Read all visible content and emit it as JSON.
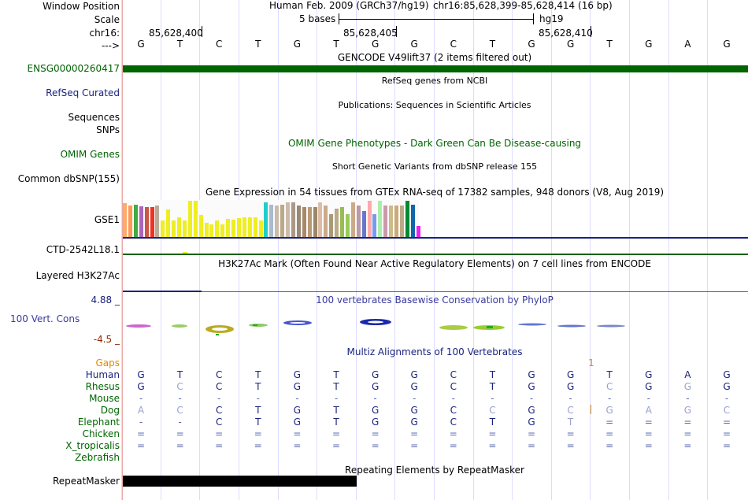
{
  "header": {
    "window_position_label": "Window Position",
    "scale_label": "Scale",
    "chrom_label": "chr16:",
    "arrow_label": "--->",
    "assembly": "Human Feb. 2009 (GRCh37/hg19)",
    "position": "chr16:85,628,399-85,628,414 (16 bp)",
    "scale_bar_text": "5 bases",
    "scale_assembly": "hg19",
    "coordinates": [
      "85,628,400",
      "85,628,405",
      "85,628,410"
    ],
    "bases": [
      "G",
      "T",
      "C",
      "T",
      "G",
      "T",
      "G",
      "G",
      "C",
      "T",
      "G",
      "G",
      "T",
      "G",
      "A",
      "G"
    ]
  },
  "tracks": {
    "gencode": {
      "title": "GENCODE V49lift37 (2 items filtered out)",
      "item_label": "ENSG00000260417"
    },
    "refseq": {
      "title": "RefSeq genes from NCBI",
      "label": "RefSeq Curated"
    },
    "publications": {
      "title": "Publications: Sequences in Scientific Articles",
      "label_a": "Sequences",
      "label_b": "SNPs"
    },
    "omim": {
      "title": "OMIM Gene Phenotypes - Dark Green Can Be Disease-causing",
      "label": "OMIM Genes"
    },
    "dbsnp": {
      "title": "Short Genetic Variants from dbSNP release 155",
      "label": "Common dbSNP(155)"
    },
    "gtex": {
      "title": "Gene Expression in 54 tissues from GTEx RNA-seq of 17382 samples, 948 donors (V8, Aug 2019)",
      "gene_label": "GSE1",
      "gene2_label": "CTD-2542L18.1",
      "bars": [
        {
          "v": 0.93,
          "c": "#ffaa66"
        },
        {
          "v": 0.86,
          "c": "#ff9955"
        },
        {
          "v": 0.9,
          "c": "#44aa44"
        },
        {
          "v": 0.84,
          "c": "#aa66bb"
        },
        {
          "v": 0.82,
          "c": "#cc5544"
        },
        {
          "v": 0.82,
          "c": "#ee3322"
        },
        {
          "v": 0.88,
          "c": "#bbaa99"
        },
        {
          "v": 0.46,
          "c": "#eeee22"
        },
        {
          "v": 0.75,
          "c": "#eeee22"
        },
        {
          "v": 0.46,
          "c": "#eeee22"
        },
        {
          "v": 0.55,
          "c": "#eeee22"
        },
        {
          "v": 0.46,
          "c": "#eeee22"
        },
        {
          "v": 1.0,
          "c": "#eeee22"
        },
        {
          "v": 1.0,
          "c": "#eeee22"
        },
        {
          "v": 0.6,
          "c": "#eeee22"
        },
        {
          "v": 0.4,
          "c": "#eeee22"
        },
        {
          "v": 0.35,
          "c": "#eeee22"
        },
        {
          "v": 0.45,
          "c": "#eeee22"
        },
        {
          "v": 0.35,
          "c": "#eeee22"
        },
        {
          "v": 0.5,
          "c": "#eeee22"
        },
        {
          "v": 0.47,
          "c": "#eeee22"
        },
        {
          "v": 0.52,
          "c": "#eeee22"
        },
        {
          "v": 0.55,
          "c": "#eeee22"
        },
        {
          "v": 0.55,
          "c": "#eeee22"
        },
        {
          "v": 0.55,
          "c": "#eeee22"
        },
        {
          "v": 0.46,
          "c": "#eeee22"
        },
        {
          "v": 0.95,
          "c": "#22cccc"
        },
        {
          "v": 0.9,
          "c": "#aabbcc"
        },
        {
          "v": 0.86,
          "c": "#ccbbaa"
        },
        {
          "v": 0.9,
          "c": "#bbaa88"
        },
        {
          "v": 0.95,
          "c": "#ccbbaa"
        },
        {
          "v": 0.95,
          "c": "#aa9988"
        },
        {
          "v": 0.86,
          "c": "#998877"
        },
        {
          "v": 0.82,
          "c": "#aa8866"
        },
        {
          "v": 0.82,
          "c": "#bb9977"
        },
        {
          "v": 0.82,
          "c": "#998866"
        },
        {
          "v": 0.95,
          "c": "#ddbbaa"
        },
        {
          "v": 0.86,
          "c": "#ccaa88"
        },
        {
          "v": 0.64,
          "c": "#aa9977"
        },
        {
          "v": 0.78,
          "c": "#bbaa88"
        },
        {
          "v": 0.82,
          "c": "#99bb55"
        },
        {
          "v": 0.64,
          "c": "#99cc55"
        },
        {
          "v": 0.95,
          "c": "#ccaa88"
        },
        {
          "v": 0.86,
          "c": "#bb99aa"
        },
        {
          "v": 0.72,
          "c": "#6677cc"
        },
        {
          "v": 1.0,
          "c": "#ffaaaa"
        },
        {
          "v": 0.64,
          "c": "#7799ee"
        },
        {
          "v": 1.0,
          "c": "#aaeeaa"
        },
        {
          "v": 0.88,
          "c": "#cc99aa"
        },
        {
          "v": 0.86,
          "c": "#ccbb88"
        },
        {
          "v": 0.86,
          "c": "#ccaa77"
        },
        {
          "v": 0.88,
          "c": "#bbaa88"
        },
        {
          "v": 1.0,
          "c": "#008833"
        },
        {
          "v": 0.9,
          "c": "#1166aa"
        },
        {
          "v": 0.3,
          "c": "#ee22ee"
        }
      ]
    },
    "h3k27ac": {
      "title": "H3K27Ac Mark (Often Found Near Active Regulatory Elements) on 7 cell lines from ENCODE",
      "label": "Layered H3K27Ac"
    },
    "cons": {
      "title": "100 vertebrates Basewise Conservation by PhyloP",
      "label": "100 Vert. Cons",
      "max": "4.88 _",
      "min": "-4.5 _"
    },
    "multiz": {
      "title": "Multiz Alignments of 100 Vertebrates",
      "gaps_label": "Gaps",
      "gap_count": "1",
      "species": [
        {
          "name": "Human",
          "seq": [
            "G",
            "T",
            "C",
            "T",
            "G",
            "T",
            "G",
            "G",
            "C",
            "T",
            "G",
            "G",
            "T",
            "G",
            "A",
            "G"
          ]
        },
        {
          "name": "Rhesus",
          "seq": [
            "G",
            "C",
            "C",
            "T",
            "G",
            "T",
            "G",
            "G",
            "C",
            "T",
            "G",
            "G",
            "C",
            "G",
            "G",
            "G"
          ]
        },
        {
          "name": "Mouse",
          "seq": [
            "-",
            "-",
            "-",
            "-",
            "-",
            "-",
            "-",
            "-",
            "-",
            "-",
            "-",
            "-",
            "-",
            "-",
            "-",
            "-"
          ]
        },
        {
          "name": "Dog",
          "seq": [
            "A",
            "C",
            "C",
            "T",
            "G",
            "T",
            "G",
            "G",
            "C",
            "C",
            "G",
            "C",
            "G",
            "A",
            "G",
            "C"
          ]
        },
        {
          "name": "Elephant",
          "seq": [
            "-",
            "-",
            "C",
            "T",
            "G",
            "T",
            "G",
            "G",
            "C",
            "T",
            "G",
            "T",
            "=",
            "=",
            "=",
            "="
          ]
        },
        {
          "name": "Chicken",
          "seq": [
            "=",
            "=",
            "=",
            "=",
            "=",
            "=",
            "=",
            "=",
            "=",
            "=",
            "=",
            "=",
            "=",
            "=",
            "=",
            "="
          ]
        },
        {
          "name": "X_tropicalis",
          "seq": [
            "=",
            "=",
            "=",
            "=",
            "=",
            "=",
            "=",
            "=",
            "=",
            "=",
            "=",
            "=",
            "=",
            "=",
            "=",
            "="
          ]
        },
        {
          "name": "Zebrafish",
          "seq": [
            "",
            "",
            "",
            "",
            "",
            "",
            "",
            "",
            "",
            "",
            "",
            "",
            "",
            "",
            "",
            ""
          ]
        }
      ]
    },
    "repeatmasker": {
      "title": "Repeating Elements by RepeatMasker",
      "label": "RepeatMasker"
    }
  },
  "colors": {
    "gencode_green": "#006400",
    "omim_green": "#006400",
    "navy": "#1a237e",
    "orange": "#e08c00"
  }
}
